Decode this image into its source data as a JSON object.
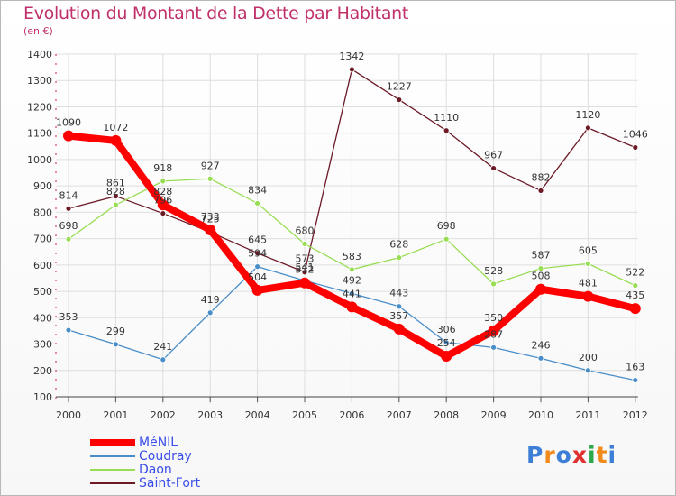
{
  "chart_data": {
    "type": "line",
    "title": "Evolution du Montant de la Dette par Habitant",
    "subtitle": "(en €)",
    "xlabel": "",
    "ylabel": "",
    "categories": [
      "2000",
      "2001",
      "2002",
      "2003",
      "2004",
      "2005",
      "2006",
      "2007",
      "2008",
      "2009",
      "2010",
      "2011",
      "2012"
    ],
    "ylim": [
      100,
      1400
    ],
    "yticks": [
      100,
      200,
      300,
      400,
      500,
      600,
      700,
      800,
      900,
      1000,
      1100,
      1200,
      1300,
      1400
    ],
    "grid": true,
    "legend_position": "bottom-left",
    "series": [
      {
        "name": "MéNIL",
        "color": "#ff0000",
        "values": [
          1090,
          1072,
          828,
          733,
          504,
          532,
          441,
          357,
          254,
          350,
          508,
          481,
          435
        ]
      },
      {
        "name": "Coudray",
        "color": "#4a8ec9",
        "values": [
          353,
          299,
          241,
          419,
          594,
          541,
          492,
          443,
          306,
          287,
          246,
          200,
          163
        ]
      },
      {
        "name": "Daon",
        "color": "#99dd55",
        "values": [
          698,
          828,
          918,
          927,
          834,
          680,
          583,
          628,
          698,
          528,
          587,
          605,
          522
        ]
      },
      {
        "name": "Saint-Fort",
        "color": "#6b1a26",
        "values": [
          814,
          861,
          796,
          725,
          645,
          573,
          1342,
          1227,
          1110,
          967,
          882,
          1120,
          1046
        ]
      }
    ]
  },
  "branding": {
    "logo_text": "Proxiti"
  }
}
